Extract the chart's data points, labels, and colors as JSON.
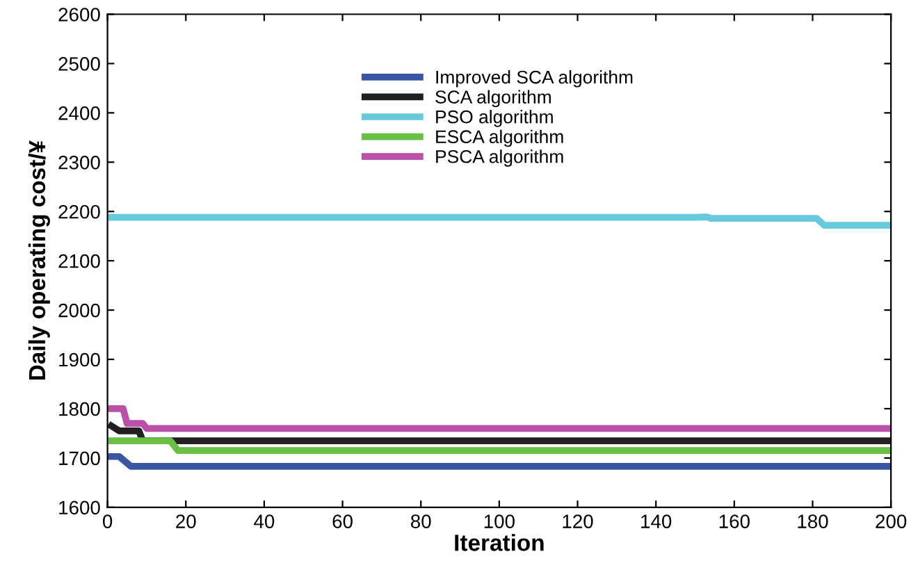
{
  "chart_data": {
    "type": "line",
    "xlabel": "Iteration",
    "ylabel": "Daily operating cost/¥",
    "xlim": [
      0,
      200
    ],
    "xticks": [
      0,
      20,
      40,
      60,
      80,
      100,
      120,
      140,
      160,
      180,
      200
    ],
    "ylim": [
      1600,
      2600
    ],
    "yticks": [
      1600,
      1700,
      1800,
      1900,
      2000,
      2100,
      2200,
      2300,
      2400,
      2500,
      2600
    ],
    "grid": false,
    "legend": "top",
    "marker": "none",
    "line_style": "solid",
    "series": [
      {
        "name": "Improved SCA algorithm",
        "color": "#3a55a4",
        "x": [
          1,
          3,
          6,
          200
        ],
        "values": [
          1703,
          1703,
          1683,
          1683
        ]
      },
      {
        "name": "SCA algorithm",
        "color": "#231f20",
        "x": [
          1,
          3,
          8,
          9,
          200
        ],
        "values": [
          1765,
          1755,
          1755,
          1735,
          1735
        ]
      },
      {
        "name": "PSO algorithm",
        "color": "#66c9dc",
        "x": [
          1,
          150,
          153,
          154,
          181,
          183,
          200
        ],
        "values": [
          2188,
          2188,
          2189,
          2186,
          2186,
          2172,
          2172
        ]
      },
      {
        "name": "ESCA algorithm",
        "color": "#6abf45",
        "x": [
          1,
          16,
          18,
          200
        ],
        "values": [
          1735,
          1735,
          1715,
          1715
        ]
      },
      {
        "name": "PSCA algorithm",
        "color": "#bb50a8",
        "x": [
          1,
          4,
          5,
          9,
          10,
          200
        ],
        "values": [
          1800,
          1800,
          1770,
          1770,
          1760,
          1760
        ]
      }
    ]
  }
}
